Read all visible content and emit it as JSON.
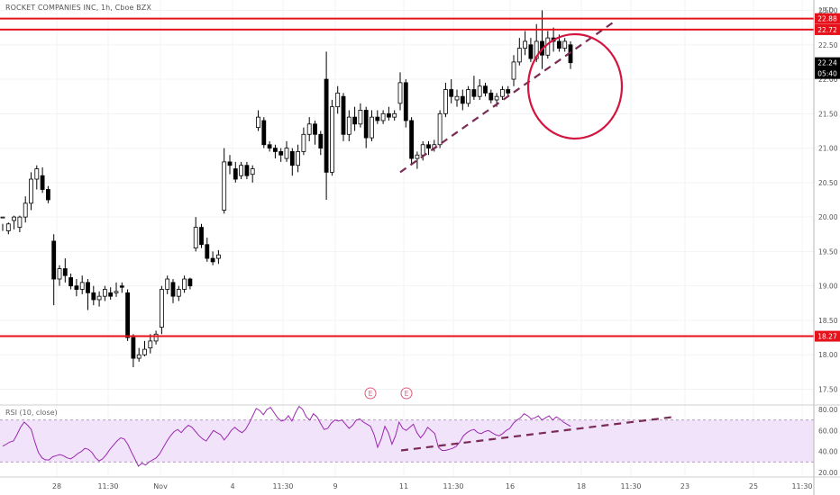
{
  "header": {
    "title": "ROCKET COMPANIES INC, 1h, Cboe BZX"
  },
  "rsi": {
    "title": "RSI (10, close)"
  },
  "earnings": [
    "E",
    "E"
  ],
  "colors": {
    "hline": "#e5121b",
    "circle": "#d3153f",
    "trend": "#7b2a55",
    "rsi": "#9b27b0",
    "rsi_fill": "#f1e3fa",
    "up": "#ffffff",
    "down": "#000000"
  },
  "chart_data": [
    {
      "type": "candlestick",
      "ylim": [
        17.4,
        23.25
      ],
      "currency": "USD",
      "price_ticks": [
        "23.00",
        "22.50",
        "22.00",
        "21.50",
        "21.00",
        "20.50",
        "20.00",
        "19.50",
        "19.00",
        "18.50",
        "18.00",
        "17.50"
      ],
      "x_ticks": [
        "28",
        "11:30",
        "Nov",
        "4",
        "11:30",
        "9",
        "11",
        "11:30",
        "16",
        "18",
        "11:30",
        "23",
        "25",
        "11:30"
      ],
      "horizontal_lines": [
        {
          "price": 22.88,
          "label": "22.88"
        },
        {
          "price": 22.72,
          "label": "22.72"
        },
        {
          "price": 18.27,
          "label": "18.27"
        }
      ],
      "last_price": {
        "value": 22.24,
        "label": "22.24",
        "countdown": "05:40"
      },
      "candles": [
        [
          20.0,
          20.0,
          19.9,
          19.8
        ],
        [
          19.8,
          19.9,
          19.92,
          19.75
        ],
        [
          19.95,
          20.0,
          20.02,
          19.82
        ],
        [
          19.85,
          20.0,
          20.02,
          19.78
        ],
        [
          20.0,
          20.2,
          20.3,
          19.92
        ],
        [
          20.2,
          20.55,
          20.65,
          20.1
        ],
        [
          20.55,
          20.7,
          20.75,
          20.4
        ],
        [
          20.6,
          20.4,
          20.72,
          20.35
        ],
        [
          20.4,
          20.25,
          20.45,
          20.2
        ],
        [
          19.65,
          19.1,
          19.75,
          18.72
        ],
        [
          19.1,
          19.25,
          19.3,
          19.0
        ],
        [
          19.25,
          19.15,
          19.4,
          19.05
        ],
        [
          19.12,
          19.0,
          19.18,
          18.95
        ],
        [
          19.0,
          18.95,
          19.1,
          18.85
        ],
        [
          18.95,
          19.05,
          19.15,
          18.88
        ],
        [
          19.05,
          18.9,
          19.1,
          18.65
        ],
        [
          18.9,
          18.8,
          19.0,
          18.72
        ],
        [
          18.8,
          18.85,
          18.92,
          18.7
        ],
        [
          18.85,
          18.95,
          19.0,
          18.78
        ],
        [
          18.9,
          18.85,
          18.98,
          18.8
        ],
        [
          18.9,
          18.92,
          19.05,
          18.84
        ],
        [
          19.0,
          18.98,
          19.05,
          18.9
        ],
        [
          18.9,
          18.25,
          18.95,
          18.2
        ],
        [
          18.25,
          17.95,
          18.3,
          17.82
        ],
        [
          17.95,
          18.0,
          18.1,
          17.9
        ],
        [
          18.0,
          18.08,
          18.2,
          17.98
        ],
        [
          18.1,
          18.2,
          18.3,
          18.02
        ],
        [
          18.2,
          18.3,
          18.35,
          18.15
        ],
        [
          18.4,
          18.95,
          19.0,
          18.3
        ],
        [
          18.95,
          19.1,
          19.15,
          18.88
        ],
        [
          19.05,
          18.85,
          19.1,
          18.75
        ],
        [
          18.85,
          18.95,
          19.0,
          18.78
        ],
        [
          18.95,
          19.1,
          19.15,
          18.9
        ],
        [
          19.1,
          19.0,
          19.12,
          18.95
        ],
        [
          19.55,
          19.85,
          20.0,
          19.5
        ],
        [
          19.85,
          19.6,
          19.9,
          19.55
        ],
        [
          19.6,
          19.4,
          19.7,
          19.35
        ],
        [
          19.4,
          19.35,
          19.5,
          19.3
        ],
        [
          19.4,
          19.45,
          19.52,
          19.32
        ],
        [
          20.1,
          20.8,
          21.0,
          20.05
        ],
        [
          20.8,
          20.75,
          20.9,
          20.62
        ],
        [
          20.7,
          20.55,
          20.8,
          20.5
        ],
        [
          20.6,
          20.75,
          20.8,
          20.55
        ],
        [
          20.75,
          20.6,
          20.8,
          20.55
        ],
        [
          20.62,
          20.7,
          20.75,
          20.5
        ],
        [
          21.3,
          21.45,
          21.55,
          21.25
        ],
        [
          21.4,
          21.05,
          21.45,
          21.0
        ],
        [
          21.05,
          21.0,
          21.1,
          20.95
        ],
        [
          21.0,
          20.95,
          21.05,
          20.85
        ],
        [
          20.95,
          20.9,
          21.0,
          20.8
        ],
        [
          20.85,
          21.0,
          21.1,
          20.8
        ],
        [
          20.95,
          20.75,
          21.0,
          20.6
        ],
        [
          20.75,
          20.95,
          21.05,
          20.65
        ],
        [
          20.95,
          21.2,
          21.3,
          20.9
        ],
        [
          21.2,
          21.35,
          21.45,
          21.1
        ],
        [
          21.35,
          21.2,
          21.4,
          21.05
        ],
        [
          21.2,
          21.0,
          21.25,
          20.9
        ],
        [
          22.0,
          20.65,
          22.4,
          20.25
        ],
        [
          20.65,
          21.6,
          21.7,
          20.6
        ],
        [
          21.6,
          21.8,
          21.9,
          21.5
        ],
        [
          21.75,
          21.2,
          21.8,
          21.1
        ],
        [
          21.2,
          21.45,
          21.55,
          21.1
        ],
        [
          21.45,
          21.35,
          21.6,
          21.25
        ],
        [
          21.35,
          21.55,
          21.65,
          21.3
        ],
        [
          21.55,
          21.15,
          21.6,
          21.0
        ],
        [
          21.15,
          21.45,
          21.55,
          21.1
        ],
        [
          21.45,
          21.4,
          21.55,
          21.35
        ],
        [
          21.4,
          21.5,
          21.55,
          21.35
        ],
        [
          21.5,
          21.45,
          21.6,
          21.4
        ],
        [
          21.45,
          21.5,
          21.55,
          21.4
        ],
        [
          21.65,
          21.95,
          22.1,
          21.55
        ],
        [
          21.95,
          21.4,
          22.0,
          21.3
        ],
        [
          21.4,
          20.85,
          21.45,
          20.75
        ],
        [
          20.85,
          20.9,
          20.95,
          20.7
        ],
        [
          20.9,
          21.05,
          21.1,
          20.82
        ],
        [
          21.05,
          21.0,
          21.1,
          20.9
        ],
        [
          21.0,
          21.05,
          21.12,
          20.95
        ],
        [
          21.05,
          21.5,
          21.55,
          21.0
        ],
        [
          21.5,
          21.85,
          21.95,
          21.45
        ],
        [
          21.85,
          21.75,
          22.0,
          21.65
        ],
        [
          21.7,
          21.75,
          21.85,
          21.6
        ],
        [
          21.75,
          21.65,
          21.85,
          21.55
        ],
        [
          21.65,
          21.85,
          21.9,
          21.6
        ],
        [
          21.85,
          21.75,
          22.05,
          21.7
        ],
        [
          21.75,
          21.9,
          22.0,
          21.7
        ],
        [
          21.9,
          21.8,
          21.95,
          21.75
        ],
        [
          21.8,
          21.7,
          21.85,
          21.65
        ],
        [
          21.7,
          21.75,
          21.8,
          21.6
        ],
        [
          21.75,
          21.85,
          21.9,
          21.7
        ],
        [
          21.85,
          21.8,
          21.9,
          21.75
        ],
        [
          22.0,
          22.25,
          22.35,
          21.9
        ],
        [
          22.25,
          22.45,
          22.6,
          22.2
        ],
        [
          22.45,
          22.55,
          22.7,
          22.35
        ],
        [
          22.5,
          22.3,
          22.6,
          22.25
        ],
        [
          22.3,
          22.55,
          22.8,
          22.25
        ],
        [
          22.55,
          22.35,
          23.0,
          22.15
        ],
        [
          22.35,
          22.6,
          22.7,
          22.3
        ],
        [
          22.6,
          22.55,
          22.75,
          22.4
        ],
        [
          22.55,
          22.45,
          22.65,
          22.4
        ],
        [
          22.45,
          22.55,
          22.6,
          22.4
        ],
        [
          22.5,
          22.24,
          22.55,
          22.15
        ]
      ]
    },
    {
      "type": "line",
      "name": "RSI (10, close)",
      "ylim": [
        17,
        88
      ],
      "y_ticks": [
        "80.00",
        "60.00",
        "40.00",
        "20.00"
      ],
      "bands": [
        70,
        30
      ],
      "values": [
        45,
        47,
        49,
        50,
        56,
        63,
        68,
        65,
        61,
        49,
        39,
        34,
        32,
        32,
        35,
        36,
        37,
        36,
        34,
        33,
        35,
        38,
        40,
        43,
        42,
        39,
        34,
        31,
        33,
        37,
        42,
        46,
        50,
        53,
        52,
        47,
        40,
        33,
        26,
        29,
        27,
        30,
        32,
        34,
        38,
        44,
        50,
        55,
        59,
        61,
        58,
        62,
        65,
        63,
        59,
        55,
        52,
        50,
        55,
        60,
        58,
        56,
        51,
        55,
        60,
        63,
        60,
        58,
        61,
        67,
        74,
        81,
        79,
        75,
        80,
        82,
        77,
        72,
        69,
        70,
        74,
        69,
        77,
        83,
        80,
        73,
        70,
        76,
        73,
        67,
        61,
        62,
        67,
        70,
        69,
        70,
        66,
        62,
        65,
        70,
        71,
        68,
        66,
        64,
        56,
        44,
        52,
        64,
        58,
        47,
        55,
        68,
        62,
        60,
        63,
        66,
        58,
        53,
        57,
        63,
        60,
        57,
        44,
        41,
        41,
        42,
        43,
        45,
        49,
        55,
        58,
        60,
        61,
        58,
        57,
        59,
        60,
        58,
        56,
        55,
        57,
        60,
        62,
        67,
        70,
        72,
        76,
        74,
        71,
        72,
        74,
        70,
        72,
        74,
        70,
        73,
        71,
        68,
        66,
        64
      ]
    }
  ]
}
